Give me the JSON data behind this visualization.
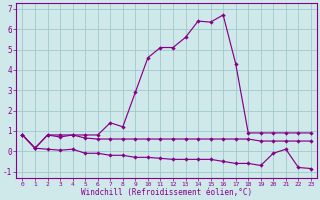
{
  "xlabel": "Windchill (Refroidissement éolien,°C)",
  "background_color": "#cfe8ea",
  "line_color": "#880088",
  "grid_color": "#a0c8cc",
  "hours": [
    0,
    1,
    2,
    3,
    4,
    5,
    6,
    7,
    8,
    9,
    10,
    11,
    12,
    13,
    14,
    15,
    16,
    17,
    18,
    19,
    20,
    21,
    22,
    23
  ],
  "line_main": [
    0.8,
    0.15,
    0.8,
    0.8,
    0.8,
    0.8,
    0.8,
    1.4,
    1.2,
    2.9,
    4.6,
    5.1,
    5.1,
    5.6,
    6.4,
    6.35,
    6.7,
    4.3,
    0.9,
    0.9,
    0.9,
    0.9,
    0.9,
    0.9
  ],
  "line_mid": [
    0.8,
    0.15,
    0.8,
    0.7,
    0.8,
    0.65,
    0.6,
    0.6,
    0.6,
    0.6,
    0.6,
    0.6,
    0.6,
    0.6,
    0.6,
    0.6,
    0.6,
    0.6,
    0.6,
    0.5,
    0.5,
    0.5,
    0.5,
    0.5
  ],
  "line_low": [
    0.8,
    0.15,
    0.1,
    0.05,
    0.1,
    -0.1,
    -0.1,
    -0.2,
    -0.2,
    -0.3,
    -0.3,
    -0.35,
    -0.4,
    -0.4,
    -0.4,
    -0.4,
    -0.5,
    -0.6,
    -0.6,
    -0.7,
    -0.1,
    0.1,
    -0.8,
    -0.85
  ],
  "ylim": [
    -1.3,
    7.3
  ],
  "yticks": [
    -1,
    0,
    1,
    2,
    3,
    4,
    5,
    6,
    7
  ]
}
